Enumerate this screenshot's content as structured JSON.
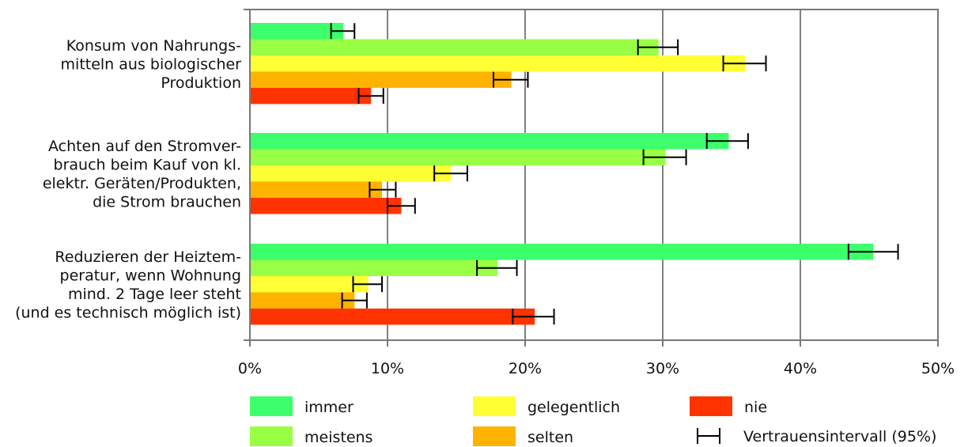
{
  "chart_data": {
    "type": "bar",
    "orientation": "horizontal",
    "title": "",
    "xlabel": "",
    "ylabel": "",
    "xlim": [
      0,
      50
    ],
    "x_ticks": [
      "0%",
      "10%",
      "20%",
      "30%",
      "40%",
      "50%"
    ],
    "grid": "vertical",
    "legend_position": "bottom",
    "categories": [
      {
        "label_lines": [
          "Konsum von Nahrungs-",
          "mitteln aus biologischer",
          "Produktion"
        ],
        "values": [
          6.8,
          29.7,
          36.0,
          19.0,
          8.8
        ],
        "ci_low": [
          5.9,
          28.2,
          34.4,
          17.7,
          7.9
        ],
        "ci_high": [
          7.6,
          31.1,
          37.5,
          20.2,
          9.7
        ]
      },
      {
        "label_lines": [
          "Achten auf den Stromver-",
          "brauch beim Kauf von kl.",
          "elektr. Geräten/Produkten,",
          "die Strom brauchen"
        ],
        "values": [
          34.8,
          30.2,
          14.6,
          9.6,
          11.0
        ],
        "ci_low": [
          33.2,
          28.6,
          13.4,
          8.7,
          10.0
        ],
        "ci_high": [
          36.2,
          31.7,
          15.8,
          10.6,
          12.0
        ]
      },
      {
        "label_lines": [
          "Reduzieren der Heiztem-",
          "peratur, wenn Wohnung",
          "mind. 2 Tage leer steht",
          "(und es technisch möglich ist)"
        ],
        "values": [
          45.3,
          18.0,
          8.6,
          7.6,
          20.7
        ],
        "ci_low": [
          43.5,
          16.5,
          7.5,
          6.7,
          19.1
        ],
        "ci_high": [
          47.1,
          19.4,
          9.6,
          8.5,
          22.1
        ]
      }
    ],
    "series": [
      {
        "name": "immer",
        "color": "#3dff6b"
      },
      {
        "name": "meistens",
        "color": "#99ff44"
      },
      {
        "name": "gelegentlich",
        "color": "#ffff33"
      },
      {
        "name": "selten",
        "color": "#ffb300"
      },
      {
        "name": "nie",
        "color": "#ff3300"
      }
    ],
    "error_bar_legend": "Vertrauensintervall (95%)"
  }
}
